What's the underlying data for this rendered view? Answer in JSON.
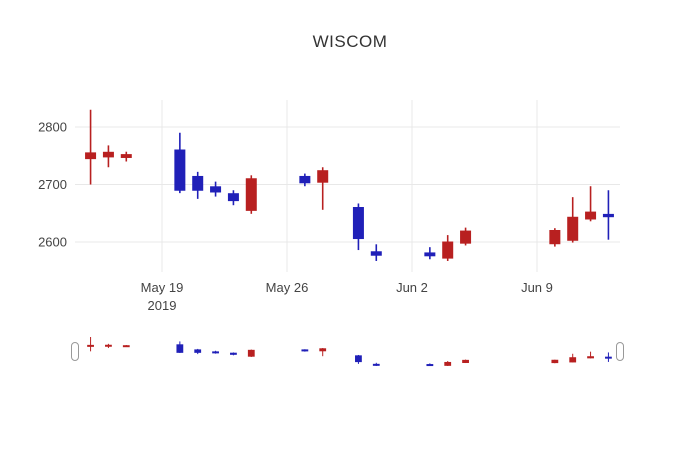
{
  "title": "WISCOM",
  "colors": {
    "up": "#b82020",
    "down": "#2020b8",
    "grid": "#e8e8e8",
    "tick_text": "#444444",
    "background": "#ffffff",
    "slider_handle_border": "#999999"
  },
  "y_axis": {
    "ticks": [
      2600,
      2700,
      2800
    ]
  },
  "x_axis": {
    "ticks": [
      {
        "label": "May 19",
        "sublabel": "2019",
        "date": "2019-05-19"
      },
      {
        "label": "May 26",
        "sublabel": "",
        "date": "2019-05-26"
      },
      {
        "label": "Jun 2",
        "sublabel": "",
        "date": "2019-06-02"
      },
      {
        "label": "Jun 9",
        "sublabel": "",
        "date": "2019-06-09"
      }
    ]
  },
  "rangeslider": {
    "visible": true
  },
  "chart_data": {
    "type": "candlestick",
    "title": "WISCOM",
    "xlabel": "",
    "ylabel": "",
    "legend": "none",
    "grid": true,
    "up_means": "close >= open (red)",
    "down_means": "close < open (blue)",
    "ohlc": [
      {
        "date": "2019-05-15",
        "open": 2745,
        "high": 2830,
        "low": 2700,
        "close": 2755
      },
      {
        "date": "2019-05-16",
        "open": 2748,
        "high": 2768,
        "low": 2730,
        "close": 2756
      },
      {
        "date": "2019-05-17",
        "open": 2747,
        "high": 2757,
        "low": 2740,
        "close": 2752
      },
      {
        "date": "2019-05-20",
        "open": 2760,
        "high": 2790,
        "low": 2685,
        "close": 2690
      },
      {
        "date": "2019-05-21",
        "open": 2714,
        "high": 2722,
        "low": 2675,
        "close": 2690
      },
      {
        "date": "2019-05-22",
        "open": 2696,
        "high": 2705,
        "low": 2679,
        "close": 2687
      },
      {
        "date": "2019-05-23",
        "open": 2684,
        "high": 2690,
        "low": 2664,
        "close": 2672
      },
      {
        "date": "2019-05-24",
        "open": 2655,
        "high": 2716,
        "low": 2649,
        "close": 2710
      },
      {
        "date": "2019-05-27",
        "open": 2714,
        "high": 2719,
        "low": 2697,
        "close": 2703
      },
      {
        "date": "2019-05-28",
        "open": 2704,
        "high": 2730,
        "low": 2656,
        "close": 2724
      },
      {
        "date": "2019-05-30",
        "open": 2660,
        "high": 2667,
        "low": 2586,
        "close": 2606
      },
      {
        "date": "2019-05-31",
        "open": 2583,
        "high": 2596,
        "low": 2567,
        "close": 2577
      },
      {
        "date": "2019-06-03",
        "open": 2581,
        "high": 2591,
        "low": 2570,
        "close": 2576
      },
      {
        "date": "2019-06-04",
        "open": 2572,
        "high": 2612,
        "low": 2567,
        "close": 2600
      },
      {
        "date": "2019-06-05",
        "open": 2598,
        "high": 2625,
        "low": 2594,
        "close": 2619
      },
      {
        "date": "2019-06-10",
        "open": 2597,
        "high": 2624,
        "low": 2592,
        "close": 2620
      },
      {
        "date": "2019-06-11",
        "open": 2603,
        "high": 2678,
        "low": 2599,
        "close": 2643
      },
      {
        "date": "2019-06-12",
        "open": 2640,
        "high": 2697,
        "low": 2636,
        "close": 2652
      },
      {
        "date": "2019-06-13",
        "open": 2648,
        "high": 2690,
        "low": 2604,
        "close": 2644
      }
    ]
  }
}
